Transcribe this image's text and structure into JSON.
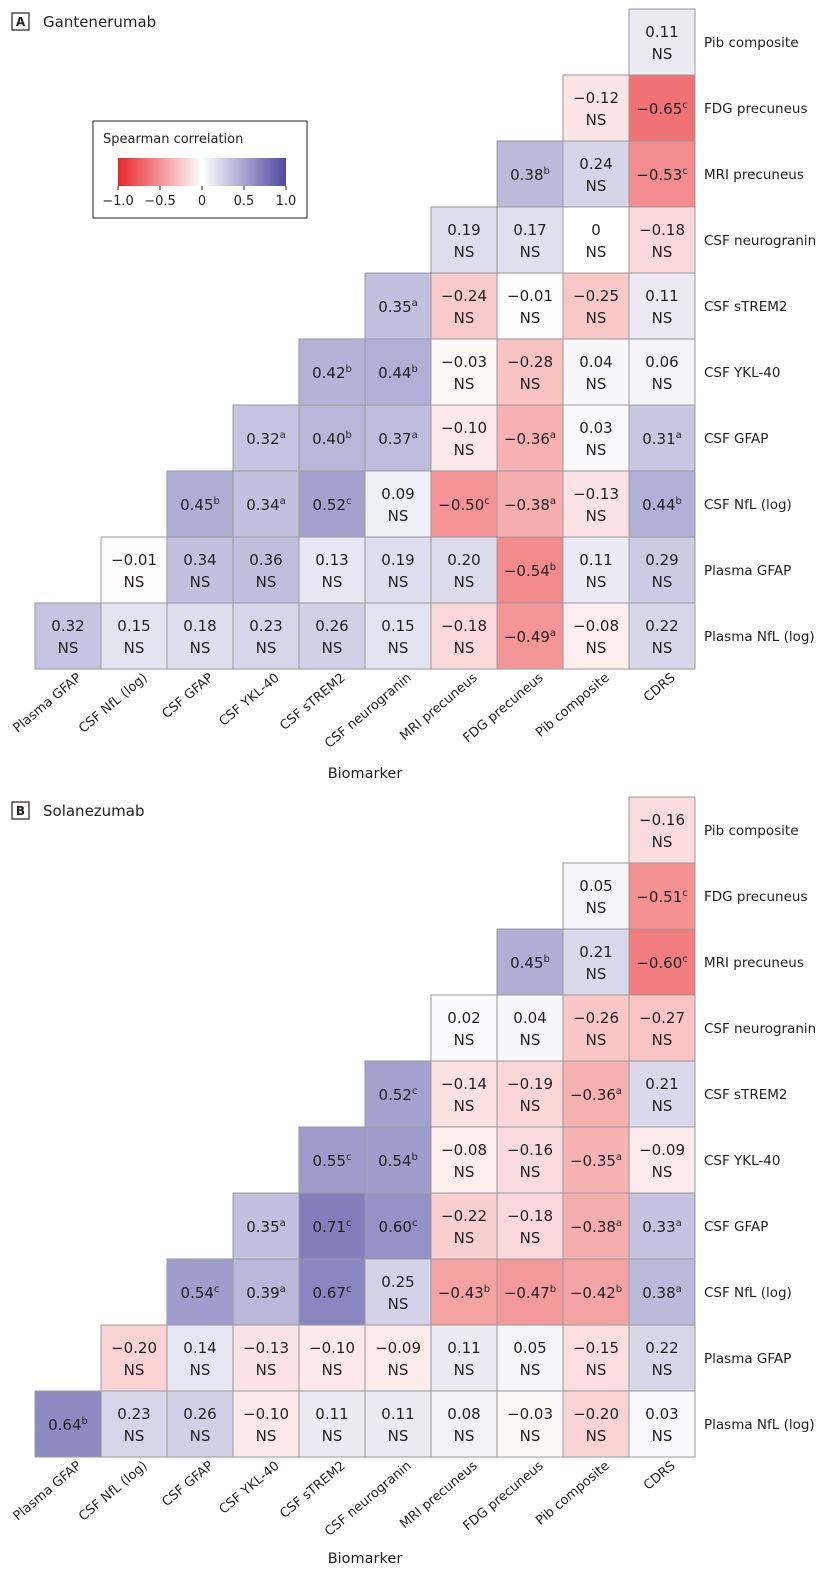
{
  "legend": {
    "title": "Spearman correlation",
    "ticks": [
      "−1.0",
      "−0.5",
      "0",
      "0.5",
      "1.0"
    ],
    "tick_values": [
      -1.0,
      -0.5,
      0,
      0.5,
      1.0
    ],
    "colors": {
      "negative": "#e8262a",
      "zero": "#ffffff",
      "positive": "#4e4aa1"
    }
  },
  "chart_data": [
    {
      "type": "heatmap",
      "panel": "A",
      "title": "Gantenerumab",
      "xlabel": "Biomarker",
      "x_categories": [
        "Plasma GFAP",
        "CSF NfL (log)",
        "CSF GFAP",
        "CSF YKL-40",
        "CSF sTREM2",
        "CSF neurogranin",
        "MRI precuneus",
        "FDG precuneus",
        "Pib composite",
        "CDRS"
      ],
      "y_categories": [
        "Pib composite",
        "FDG precuneus",
        "MRI precuneus",
        "CSF neurogranin",
        "CSF sTREM2",
        "CSF YKL-40",
        "CSF GFAP",
        "CSF NfL (log)",
        "Plasma GFAP",
        "Plasma NfL (log)"
      ],
      "color_scale": [
        -1.0,
        1.0
      ],
      "cells": [
        {
          "row": 0,
          "col": 9,
          "value": 0.11,
          "label": "0.11",
          "sup": "",
          "ns": true
        },
        {
          "row": 1,
          "col": 8,
          "value": -0.12,
          "label": "−0.12",
          "sup": "",
          "ns": true
        },
        {
          "row": 1,
          "col": 9,
          "value": -0.65,
          "label": "−0.65",
          "sup": "c",
          "ns": false
        },
        {
          "row": 2,
          "col": 7,
          "value": 0.38,
          "label": "0.38",
          "sup": "b",
          "ns": false
        },
        {
          "row": 2,
          "col": 8,
          "value": 0.24,
          "label": "0.24",
          "sup": "",
          "ns": true
        },
        {
          "row": 2,
          "col": 9,
          "value": -0.53,
          "label": "−0.53",
          "sup": "c",
          "ns": false
        },
        {
          "row": 3,
          "col": 6,
          "value": 0.19,
          "label": "0.19",
          "sup": "",
          "ns": true
        },
        {
          "row": 3,
          "col": 7,
          "value": 0.17,
          "label": "0.17",
          "sup": "",
          "ns": true
        },
        {
          "row": 3,
          "col": 8,
          "value": 0,
          "label": "0",
          "sup": "",
          "ns": true
        },
        {
          "row": 3,
          "col": 9,
          "value": -0.18,
          "label": "−0.18",
          "sup": "",
          "ns": true
        },
        {
          "row": 4,
          "col": 5,
          "value": 0.35,
          "label": "0.35",
          "sup": "a",
          "ns": false
        },
        {
          "row": 4,
          "col": 6,
          "value": -0.24,
          "label": "−0.24",
          "sup": "",
          "ns": true
        },
        {
          "row": 4,
          "col": 7,
          "value": -0.01,
          "label": "−0.01",
          "sup": "",
          "ns": true
        },
        {
          "row": 4,
          "col": 8,
          "value": -0.25,
          "label": "−0.25",
          "sup": "",
          "ns": true
        },
        {
          "row": 4,
          "col": 9,
          "value": 0.11,
          "label": "0.11",
          "sup": "",
          "ns": true
        },
        {
          "row": 5,
          "col": 4,
          "value": 0.42,
          "label": "0.42",
          "sup": "b",
          "ns": false
        },
        {
          "row": 5,
          "col": 5,
          "value": 0.44,
          "label": "0.44",
          "sup": "b",
          "ns": false
        },
        {
          "row": 5,
          "col": 6,
          "value": -0.03,
          "label": "−0.03",
          "sup": "",
          "ns": true
        },
        {
          "row": 5,
          "col": 7,
          "value": -0.28,
          "label": "−0.28",
          "sup": "",
          "ns": true
        },
        {
          "row": 5,
          "col": 8,
          "value": 0.04,
          "label": "0.04",
          "sup": "",
          "ns": true
        },
        {
          "row": 5,
          "col": 9,
          "value": 0.06,
          "label": "0.06",
          "sup": "",
          "ns": true
        },
        {
          "row": 6,
          "col": 3,
          "value": 0.32,
          "label": "0.32",
          "sup": "a",
          "ns": false
        },
        {
          "row": 6,
          "col": 4,
          "value": 0.4,
          "label": "0.40",
          "sup": "b",
          "ns": false
        },
        {
          "row": 6,
          "col": 5,
          "value": 0.37,
          "label": "0.37",
          "sup": "a",
          "ns": false
        },
        {
          "row": 6,
          "col": 6,
          "value": -0.1,
          "label": "−0.10",
          "sup": "",
          "ns": true
        },
        {
          "row": 6,
          "col": 7,
          "value": -0.36,
          "label": "−0.36",
          "sup": "a",
          "ns": false
        },
        {
          "row": 6,
          "col": 8,
          "value": 0.03,
          "label": "0.03",
          "sup": "",
          "ns": true
        },
        {
          "row": 6,
          "col": 9,
          "value": 0.31,
          "label": "0.31",
          "sup": "a",
          "ns": false
        },
        {
          "row": 7,
          "col": 2,
          "value": 0.45,
          "label": "0.45",
          "sup": "b",
          "ns": false
        },
        {
          "row": 7,
          "col": 3,
          "value": 0.34,
          "label": "0.34",
          "sup": "a",
          "ns": false
        },
        {
          "row": 7,
          "col": 4,
          "value": 0.52,
          "label": "0.52",
          "sup": "c",
          "ns": false
        },
        {
          "row": 7,
          "col": 5,
          "value": 0.09,
          "label": "0.09",
          "sup": "",
          "ns": true
        },
        {
          "row": 7,
          "col": 6,
          "value": -0.5,
          "label": "−0.50",
          "sup": "c",
          "ns": false
        },
        {
          "row": 7,
          "col": 7,
          "value": -0.38,
          "label": "−0.38",
          "sup": "a",
          "ns": false
        },
        {
          "row": 7,
          "col": 8,
          "value": -0.13,
          "label": "−0.13",
          "sup": "",
          "ns": true
        },
        {
          "row": 7,
          "col": 9,
          "value": 0.44,
          "label": "0.44",
          "sup": "b",
          "ns": false
        },
        {
          "row": 8,
          "col": 1,
          "value": -0.01,
          "label": "−0.01",
          "sup": "",
          "ns": true
        },
        {
          "row": 8,
          "col": 2,
          "value": 0.34,
          "label": "0.34",
          "sup": "",
          "ns": true
        },
        {
          "row": 8,
          "col": 3,
          "value": 0.36,
          "label": "0.36",
          "sup": "",
          "ns": true
        },
        {
          "row": 8,
          "col": 4,
          "value": 0.13,
          "label": "0.13",
          "sup": "",
          "ns": true
        },
        {
          "row": 8,
          "col": 5,
          "value": 0.19,
          "label": "0.19",
          "sup": "",
          "ns": true
        },
        {
          "row": 8,
          "col": 6,
          "value": 0.2,
          "label": "0.20",
          "sup": "",
          "ns": true
        },
        {
          "row": 8,
          "col": 7,
          "value": -0.54,
          "label": "−0.54",
          "sup": "b",
          "ns": false
        },
        {
          "row": 8,
          "col": 8,
          "value": 0.11,
          "label": "0.11",
          "sup": "",
          "ns": true
        },
        {
          "row": 8,
          "col": 9,
          "value": 0.29,
          "label": "0.29",
          "sup": "",
          "ns": true
        },
        {
          "row": 9,
          "col": 0,
          "value": 0.32,
          "label": "0.32",
          "sup": "",
          "ns": true
        },
        {
          "row": 9,
          "col": 1,
          "value": 0.15,
          "label": "0.15",
          "sup": "",
          "ns": true
        },
        {
          "row": 9,
          "col": 2,
          "value": 0.18,
          "label": "0.18",
          "sup": "",
          "ns": true
        },
        {
          "row": 9,
          "col": 3,
          "value": 0.23,
          "label": "0.23",
          "sup": "",
          "ns": true
        },
        {
          "row": 9,
          "col": 4,
          "value": 0.26,
          "label": "0.26",
          "sup": "",
          "ns": true
        },
        {
          "row": 9,
          "col": 5,
          "value": 0.15,
          "label": "0.15",
          "sup": "",
          "ns": true
        },
        {
          "row": 9,
          "col": 6,
          "value": -0.18,
          "label": "−0.18",
          "sup": "",
          "ns": true
        },
        {
          "row": 9,
          "col": 7,
          "value": -0.49,
          "label": "−0.49",
          "sup": "a",
          "ns": false
        },
        {
          "row": 9,
          "col": 8,
          "value": -0.08,
          "label": "−0.08",
          "sup": "",
          "ns": true
        },
        {
          "row": 9,
          "col": 9,
          "value": 0.22,
          "label": "0.22",
          "sup": "",
          "ns": true
        }
      ]
    },
    {
      "type": "heatmap",
      "panel": "B",
      "title": "Solanezumab",
      "xlabel": "Biomarker",
      "x_categories": [
        "Plasma GFAP",
        "CSF NfL (log)",
        "CSF GFAP",
        "CSF YKL-40",
        "CSF sTREM2",
        "CSF neurogranin",
        "MRI precuneus",
        "FDG precuneus",
        "Pib composite",
        "CDRS"
      ],
      "y_categories": [
        "Pib composite",
        "FDG precuneus",
        "MRI precuneus",
        "CSF neurogranin",
        "CSF sTREM2",
        "CSF YKL-40",
        "CSF GFAP",
        "CSF NfL (log)",
        "Plasma GFAP",
        "Plasma NfL (log)"
      ],
      "color_scale": [
        -1.0,
        1.0
      ],
      "cells": [
        {
          "row": 0,
          "col": 9,
          "value": -0.16,
          "label": "−0.16",
          "sup": "",
          "ns": true
        },
        {
          "row": 1,
          "col": 8,
          "value": 0.05,
          "label": "0.05",
          "sup": "",
          "ns": true
        },
        {
          "row": 1,
          "col": 9,
          "value": -0.51,
          "label": "−0.51",
          "sup": "c",
          "ns": false
        },
        {
          "row": 2,
          "col": 7,
          "value": 0.45,
          "label": "0.45",
          "sup": "b",
          "ns": false
        },
        {
          "row": 2,
          "col": 8,
          "value": 0.21,
          "label": "0.21",
          "sup": "",
          "ns": true
        },
        {
          "row": 2,
          "col": 9,
          "value": -0.6,
          "label": "−0.60",
          "sup": "c",
          "ns": false
        },
        {
          "row": 3,
          "col": 6,
          "value": 0.02,
          "label": "0.02",
          "sup": "",
          "ns": true
        },
        {
          "row": 3,
          "col": 7,
          "value": 0.04,
          "label": "0.04",
          "sup": "",
          "ns": true
        },
        {
          "row": 3,
          "col": 8,
          "value": -0.26,
          "label": "−0.26",
          "sup": "",
          "ns": true
        },
        {
          "row": 3,
          "col": 9,
          "value": -0.27,
          "label": "−0.27",
          "sup": "",
          "ns": true
        },
        {
          "row": 4,
          "col": 5,
          "value": 0.52,
          "label": "0.52",
          "sup": "c",
          "ns": false
        },
        {
          "row": 4,
          "col": 6,
          "value": -0.14,
          "label": "−0.14",
          "sup": "",
          "ns": true
        },
        {
          "row": 4,
          "col": 7,
          "value": -0.19,
          "label": "−0.19",
          "sup": "",
          "ns": true
        },
        {
          "row": 4,
          "col": 8,
          "value": -0.36,
          "label": "−0.36",
          "sup": "a",
          "ns": false
        },
        {
          "row": 4,
          "col": 9,
          "value": 0.21,
          "label": "0.21",
          "sup": "",
          "ns": true
        },
        {
          "row": 5,
          "col": 4,
          "value": 0.55,
          "label": "0.55",
          "sup": "c",
          "ns": false
        },
        {
          "row": 5,
          "col": 5,
          "value": 0.54,
          "label": "0.54",
          "sup": "b",
          "ns": false
        },
        {
          "row": 5,
          "col": 6,
          "value": -0.08,
          "label": "−0.08",
          "sup": "",
          "ns": true
        },
        {
          "row": 5,
          "col": 7,
          "value": -0.16,
          "label": "−0.16",
          "sup": "",
          "ns": true
        },
        {
          "row": 5,
          "col": 8,
          "value": -0.35,
          "label": "−0.35",
          "sup": "a",
          "ns": false
        },
        {
          "row": 5,
          "col": 9,
          "value": -0.09,
          "label": "−0.09",
          "sup": "",
          "ns": true
        },
        {
          "row": 6,
          "col": 3,
          "value": 0.35,
          "label": "0.35",
          "sup": "a",
          "ns": false
        },
        {
          "row": 6,
          "col": 4,
          "value": 0.71,
          "label": "0.71",
          "sup": "c",
          "ns": false
        },
        {
          "row": 6,
          "col": 5,
          "value": 0.6,
          "label": "0.60",
          "sup": "c",
          "ns": false
        },
        {
          "row": 6,
          "col": 6,
          "value": -0.22,
          "label": "−0.22",
          "sup": "",
          "ns": true
        },
        {
          "row": 6,
          "col": 7,
          "value": -0.18,
          "label": "−0.18",
          "sup": "",
          "ns": true
        },
        {
          "row": 6,
          "col": 8,
          "value": -0.38,
          "label": "−0.38",
          "sup": "a",
          "ns": false
        },
        {
          "row": 6,
          "col": 9,
          "value": 0.33,
          "label": "0.33",
          "sup": "a",
          "ns": false
        },
        {
          "row": 7,
          "col": 2,
          "value": 0.54,
          "label": "0.54",
          "sup": "c",
          "ns": false
        },
        {
          "row": 7,
          "col": 3,
          "value": 0.39,
          "label": "0.39",
          "sup": "a",
          "ns": false
        },
        {
          "row": 7,
          "col": 4,
          "value": 0.67,
          "label": "0.67",
          "sup": "c",
          "ns": false
        },
        {
          "row": 7,
          "col": 5,
          "value": 0.25,
          "label": "0.25",
          "sup": "",
          "ns": true
        },
        {
          "row": 7,
          "col": 6,
          "value": -0.43,
          "label": "−0.43",
          "sup": "b",
          "ns": false
        },
        {
          "row": 7,
          "col": 7,
          "value": -0.47,
          "label": "−0.47",
          "sup": "b",
          "ns": false
        },
        {
          "row": 7,
          "col": 8,
          "value": -0.42,
          "label": "−0.42",
          "sup": "b",
          "ns": false
        },
        {
          "row": 7,
          "col": 9,
          "value": 0.38,
          "label": "0.38",
          "sup": "a",
          "ns": false
        },
        {
          "row": 8,
          "col": 1,
          "value": -0.2,
          "label": "−0.20",
          "sup": "",
          "ns": true
        },
        {
          "row": 8,
          "col": 2,
          "value": 0.14,
          "label": "0.14",
          "sup": "",
          "ns": true
        },
        {
          "row": 8,
          "col": 3,
          "value": -0.13,
          "label": "−0.13",
          "sup": "",
          "ns": true
        },
        {
          "row": 8,
          "col": 4,
          "value": -0.1,
          "label": "−0.10",
          "sup": "",
          "ns": true
        },
        {
          "row": 8,
          "col": 5,
          "value": -0.09,
          "label": "−0.09",
          "sup": "",
          "ns": true
        },
        {
          "row": 8,
          "col": 6,
          "value": 0.11,
          "label": "0.11",
          "sup": "",
          "ns": true
        },
        {
          "row": 8,
          "col": 7,
          "value": 0.05,
          "label": "0.05",
          "sup": "",
          "ns": true
        },
        {
          "row": 8,
          "col": 8,
          "value": -0.15,
          "label": "−0.15",
          "sup": "",
          "ns": true
        },
        {
          "row": 8,
          "col": 9,
          "value": 0.22,
          "label": "0.22",
          "sup": "",
          "ns": true
        },
        {
          "row": 9,
          "col": 0,
          "value": 0.64,
          "label": "0.64",
          "sup": "b",
          "ns": false
        },
        {
          "row": 9,
          "col": 1,
          "value": 0.23,
          "label": "0.23",
          "sup": "",
          "ns": true
        },
        {
          "row": 9,
          "col": 2,
          "value": 0.26,
          "label": "0.26",
          "sup": "",
          "ns": true
        },
        {
          "row": 9,
          "col": 3,
          "value": -0.1,
          "label": "−0.10",
          "sup": "",
          "ns": true
        },
        {
          "row": 9,
          "col": 4,
          "value": 0.11,
          "label": "0.11",
          "sup": "",
          "ns": true
        },
        {
          "row": 9,
          "col": 5,
          "value": 0.11,
          "label": "0.11",
          "sup": "",
          "ns": true
        },
        {
          "row": 9,
          "col": 6,
          "value": 0.08,
          "label": "0.08",
          "sup": "",
          "ns": true
        },
        {
          "row": 9,
          "col": 7,
          "value": -0.03,
          "label": "−0.03",
          "sup": "",
          "ns": true
        },
        {
          "row": 9,
          "col": 8,
          "value": -0.2,
          "label": "−0.20",
          "sup": "",
          "ns": true
        },
        {
          "row": 9,
          "col": 9,
          "value": 0.03,
          "label": "0.03",
          "sup": "",
          "ns": true
        }
      ]
    }
  ],
  "ns_label": "NS"
}
